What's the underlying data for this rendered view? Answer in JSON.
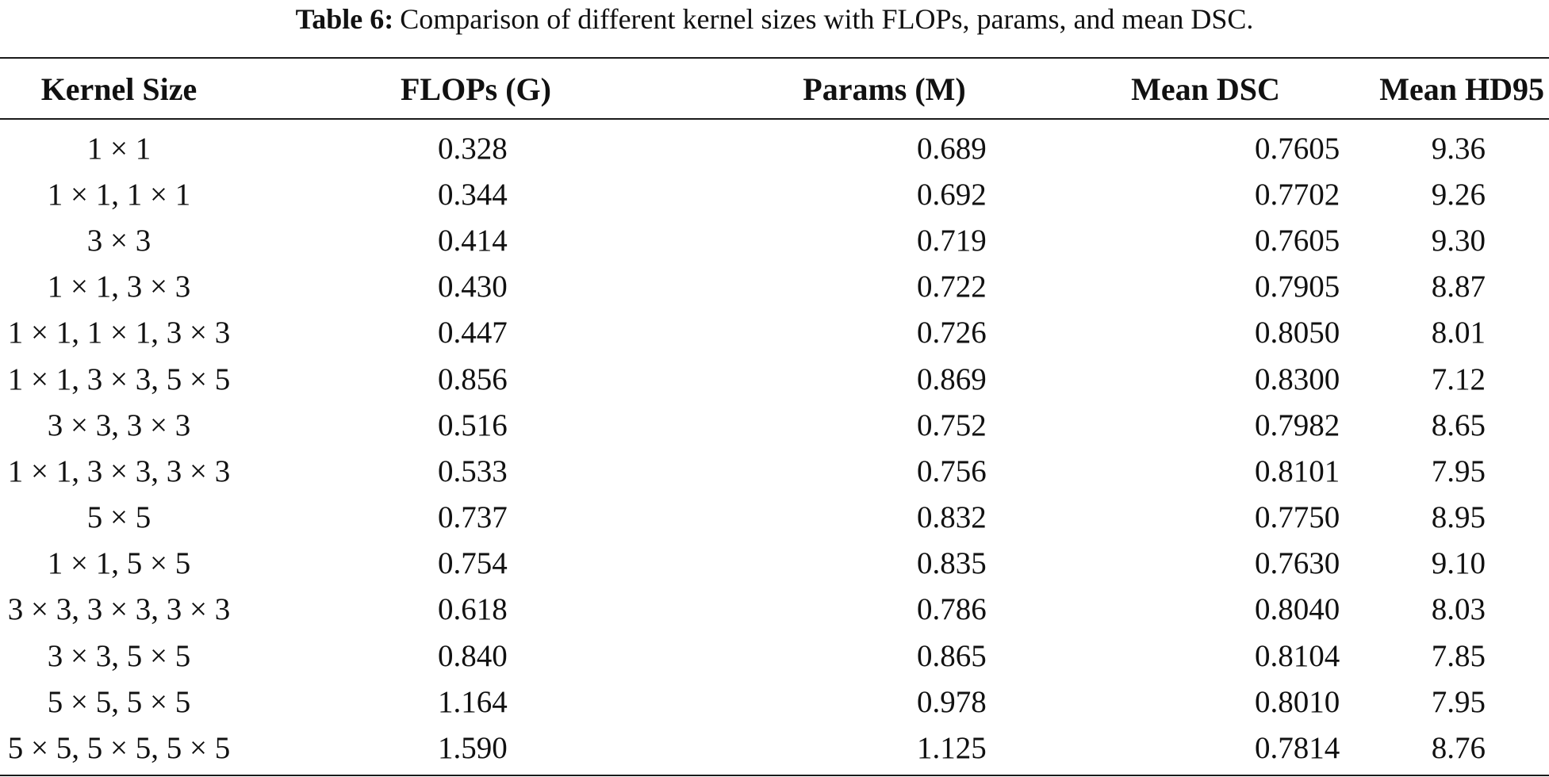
{
  "caption": {
    "label": "Table 6:",
    "text": "Comparison of different kernel sizes with FLOPs, params, and mean DSC."
  },
  "table": {
    "headers": [
      "Kernel Size",
      "FLOPs (G)",
      "Params (M)",
      "Mean DSC",
      "Mean HD95"
    ],
    "rows": [
      [
        "1 × 1",
        "0.328",
        "0.689",
        "0.7605",
        "9.36"
      ],
      [
        "1 × 1, 1 × 1",
        "0.344",
        "0.692",
        "0.7702",
        "9.26"
      ],
      [
        "3 × 3",
        "0.414",
        "0.719",
        "0.7605",
        "9.30"
      ],
      [
        "1 × 1, 3 × 3",
        "0.430",
        "0.722",
        "0.7905",
        "8.87"
      ],
      [
        "1 × 1, 1 × 1, 3 × 3",
        "0.447",
        "0.726",
        "0.8050",
        "8.01"
      ],
      [
        "1 × 1, 3 × 3, 5 × 5",
        "0.856",
        "0.869",
        "0.8300",
        "7.12"
      ],
      [
        "3 × 3, 3 × 3",
        "0.516",
        "0.752",
        "0.7982",
        "8.65"
      ],
      [
        "1 × 1, 3 × 3, 3 × 3",
        "0.533",
        "0.756",
        "0.8101",
        "7.95"
      ],
      [
        "5 × 5",
        "0.737",
        "0.832",
        "0.7750",
        "8.95"
      ],
      [
        "1 × 1, 5 × 5",
        "0.754",
        "0.835",
        "0.7630",
        "9.10"
      ],
      [
        "3 × 3, 3 × 3, 3 × 3",
        "0.618",
        "0.786",
        "0.8040",
        "8.03"
      ],
      [
        "3 × 3, 5 × 5",
        "0.840",
        "0.865",
        "0.8104",
        "7.85"
      ],
      [
        "5 × 5, 5 × 5",
        "1.164",
        "0.978",
        "0.8010",
        "7.95"
      ],
      [
        "5 × 5, 5 × 5, 5 × 5",
        "1.590",
        "1.125",
        "0.7814",
        "8.76"
      ]
    ]
  }
}
